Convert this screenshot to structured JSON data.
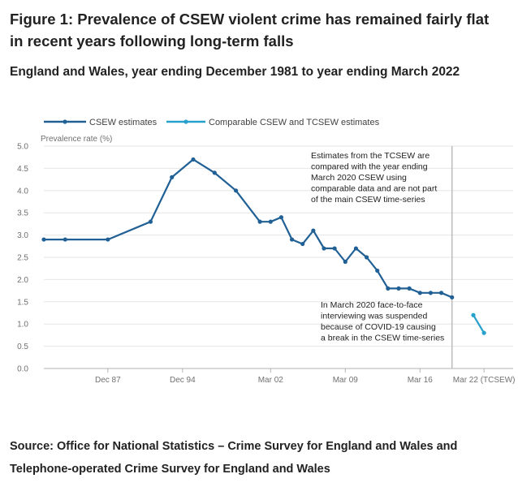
{
  "title": "Figure 1: Prevalence of CSEW violent crime has remained fairly flat in recent years following long-term falls",
  "subtitle": "England and Wales, year ending December 1981 to year ending March 2022",
  "source": "Source: Office for National Statistics – Crime Survey for England and Wales and Telephone-operated Crime Survey for England and Wales",
  "chart_data": {
    "type": "line",
    "title": "Figure 1: Prevalence of CSEW violent crime has remained fairly flat in recent years following long-term falls",
    "subtitle": "England and Wales, year ending December 1981 to year ending March 2022",
    "ylabel": "Prevalence rate (%)",
    "xlabel": "",
    "ylim": [
      0,
      5
    ],
    "yticks": [
      "0.0",
      "0.5",
      "1.0",
      "1.5",
      "2.0",
      "2.5",
      "3.0",
      "3.5",
      "4.0",
      "4.5",
      "5.0"
    ],
    "xlim": [
      1981,
      2023
    ],
    "xticks": [
      {
        "value": 1987,
        "label": "Dec 87"
      },
      {
        "value": 1994,
        "label": "Dec 94"
      },
      {
        "value": 2002.25,
        "label": "Mar 02"
      },
      {
        "value": 2009.25,
        "label": "Mar 09"
      },
      {
        "value": 2016.25,
        "label": "Mar 16"
      },
      {
        "value": 2022.25,
        "label": "Mar 22 (TCSEW)"
      }
    ],
    "grid": "horizontal",
    "legend_position": "top",
    "series": [
      {
        "name": "CSEW estimates",
        "color": "#206095",
        "points": [
          {
            "x": 1981,
            "y": 2.9
          },
          {
            "x": 1983,
            "y": 2.9
          },
          {
            "x": 1987,
            "y": 2.9
          },
          {
            "x": 1991,
            "y": 3.3
          },
          {
            "x": 1993,
            "y": 4.3
          },
          {
            "x": 1995,
            "y": 4.7
          },
          {
            "x": 1997,
            "y": 4.4
          },
          {
            "x": 1999,
            "y": 4.0
          },
          {
            "x": 2001.25,
            "y": 3.3
          },
          {
            "x": 2002.25,
            "y": 3.3
          },
          {
            "x": 2003.25,
            "y": 3.4
          },
          {
            "x": 2004.25,
            "y": 2.9
          },
          {
            "x": 2005.25,
            "y": 2.8
          },
          {
            "x": 2006.25,
            "y": 3.1
          },
          {
            "x": 2007.25,
            "y": 2.7
          },
          {
            "x": 2008.25,
            "y": 2.7
          },
          {
            "x": 2009.25,
            "y": 2.4
          },
          {
            "x": 2010.25,
            "y": 2.7
          },
          {
            "x": 2011.25,
            "y": 2.5
          },
          {
            "x": 2012.25,
            "y": 2.2
          },
          {
            "x": 2013.25,
            "y": 1.8
          },
          {
            "x": 2014.25,
            "y": 1.8
          },
          {
            "x": 2015.25,
            "y": 1.8
          },
          {
            "x": 2016.25,
            "y": 1.7
          },
          {
            "x": 2017.25,
            "y": 1.7
          },
          {
            "x": 2018.25,
            "y": 1.7
          },
          {
            "x": 2019.25,
            "y": 1.6
          }
        ]
      },
      {
        "name": "Comparable CSEW and TCSEW estimates",
        "color": "#27a0cc",
        "points": [
          {
            "x": 2021.25,
            "y": 1.2
          },
          {
            "x": 2022.25,
            "y": 0.8
          }
        ]
      }
    ],
    "break_line": {
      "x": 2019.25,
      "color": "#bcbcbd"
    },
    "annotations": [
      {
        "lines": [
          "Estimates from the TCSEW are",
          "compared with the year ending",
          "March 2020 CSEW using",
          "comparable data and are not part",
          "of the main CSEW time-series"
        ]
      },
      {
        "lines": [
          "In March 2020 face-to-face",
          "interviewing was suspended",
          "because of COVID-19 causing",
          "a break in the CSEW time-series"
        ]
      }
    ]
  }
}
